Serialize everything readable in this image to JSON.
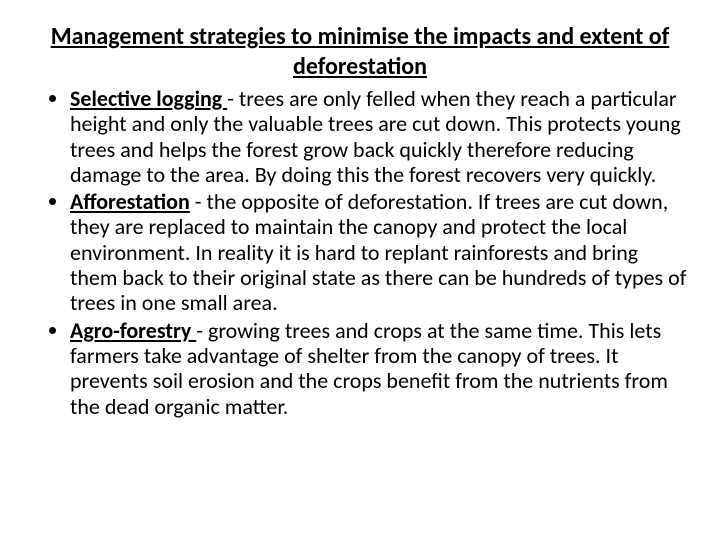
{
  "slide": {
    "background_color": "#ffffff",
    "text_color": "#000000",
    "font_family": "Calibri, Arial, sans-serif",
    "title": {
      "text": "Management strategies to minimise the impacts and extent of deforestation",
      "fontsize": 24,
      "bold": true,
      "underline": true,
      "align": "center"
    },
    "bullets": {
      "fontsize": 22,
      "line_height": 1.15,
      "marker": "disc",
      "items": [
        {
          "term": "Selective logging ",
          "body": "- trees are only felled when they reach a particular height and only the valuable trees are cut down. This protects young trees and helps the forest grow back quickly therefore reducing damage to the area. By doing this the forest recovers very quickly."
        },
        {
          "term": "Afforestation",
          "body": " - the opposite of deforestation. If trees are cut down, they are replaced to maintain the canopy and protect the local environment. In reality it is hard to replant rainforests and bring them back to their original state as there can be hundreds of types of trees in one small area."
        },
        {
          "term": "Agro-forestry ",
          "body": "- growing trees and crops at the same time. This lets farmers take advantage of shelter from the canopy of trees. It prevents soil erosion and the crops benefit from the nutrients from the dead organic matter."
        }
      ]
    }
  }
}
